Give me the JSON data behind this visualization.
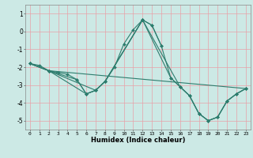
{
  "title": "",
  "xlabel": "Humidex (Indice chaleur)",
  "bg_color": "#cce9e5",
  "grid_color": "#e8a0a8",
  "line_color": "#2e7d6e",
  "ylim": [
    -5.5,
    1.5
  ],
  "xlim": [
    -0.5,
    23.5
  ],
  "yticks": [
    1,
    0,
    -1,
    -2,
    -3,
    -4,
    -5
  ],
  "xticks": [
    0,
    1,
    2,
    3,
    4,
    5,
    6,
    7,
    8,
    9,
    10,
    11,
    12,
    13,
    14,
    15,
    16,
    17,
    18,
    19,
    20,
    21,
    22,
    23
  ],
  "lines": [
    {
      "x": [
        0,
        1,
        2,
        3,
        4,
        5,
        6,
        7,
        8,
        9,
        10,
        11,
        12,
        13,
        14
      ],
      "y": [
        -1.8,
        -1.9,
        -2.2,
        -2.3,
        -2.4,
        -2.7,
        -3.5,
        -3.3,
        -2.8,
        -2.0,
        -0.7,
        0.1,
        0.65,
        0.35,
        -0.8
      ]
    },
    {
      "x": [
        0,
        2,
        5,
        6,
        7,
        8,
        12,
        13,
        14,
        15,
        16,
        17,
        18,
        19,
        20,
        21,
        22,
        23
      ],
      "y": [
        -1.8,
        -2.2,
        -2.7,
        -3.5,
        -3.3,
        -2.8,
        0.65,
        0.35,
        -0.8,
        -2.6,
        -3.1,
        -3.6,
        -4.6,
        -5.0,
        -4.8,
        -3.9,
        -3.5,
        -3.2
      ]
    },
    {
      "x": [
        0,
        2,
        7,
        8,
        12,
        15,
        16,
        17,
        18,
        19,
        20,
        21,
        22,
        23
      ],
      "y": [
        -1.8,
        -2.2,
        -3.3,
        -2.8,
        0.65,
        -2.6,
        -3.1,
        -3.6,
        -4.6,
        -5.0,
        -4.8,
        -3.9,
        -3.5,
        -3.2
      ]
    },
    {
      "x": [
        0,
        2,
        6,
        7,
        8,
        12,
        16,
        17,
        18,
        19,
        20,
        21,
        22,
        23
      ],
      "y": [
        -1.8,
        -2.2,
        -3.5,
        -3.3,
        -2.8,
        0.65,
        -3.1,
        -3.6,
        -4.6,
        -5.0,
        -4.8,
        -3.9,
        -3.5,
        -3.2
      ]
    },
    {
      "x": [
        0,
        2,
        23
      ],
      "y": [
        -1.8,
        -2.2,
        -3.2
      ]
    }
  ]
}
